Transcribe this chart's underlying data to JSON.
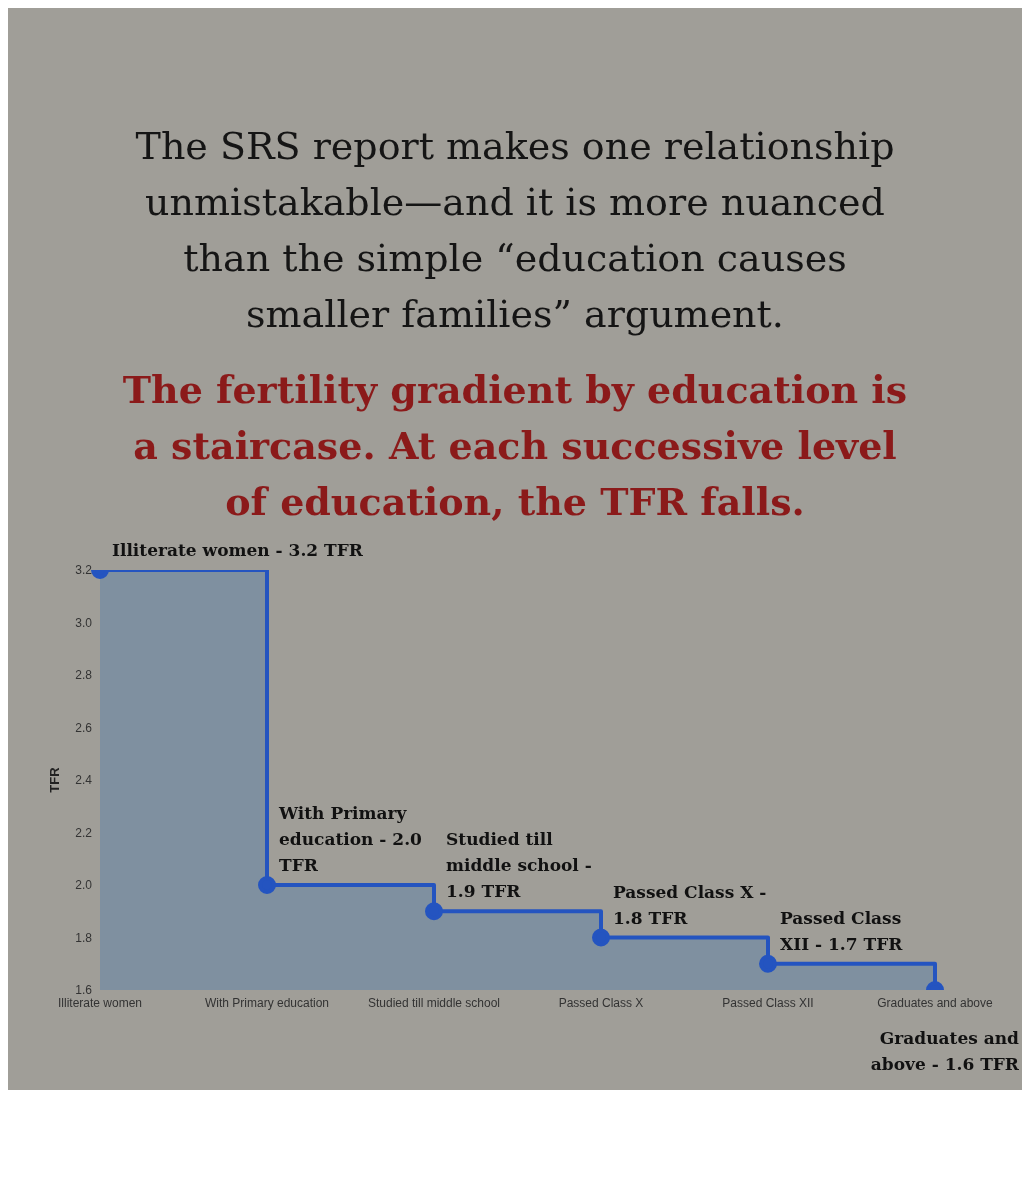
{
  "chart_data": {
    "type": "step",
    "title": "The SRS report makes one relationship unmistakable—and it is more nuanced than the simple “education causes smaller families” argument.",
    "subtitle": "The fertility gradient by education is a staircase. At each successive level of education, the TFR falls.",
    "ylabel": "TFR",
    "categories": [
      "Illiterate women",
      "With Primary education",
      "Studied till middle school",
      "Passed Class X",
      "Passed Class XII",
      "Graduates and above"
    ],
    "series": [
      {
        "color": "#2454c0",
        "values": [
          3.2,
          2.0,
          1.9,
          1.8,
          1.7,
          1.6
        ]
      }
    ],
    "ylim": [
      1.6,
      3.2
    ],
    "yticks": [
      1.6,
      1.8,
      {
        "value": 2,
        "label": "2.0"
      },
      2.2,
      2.4,
      2.6,
      2.8,
      {
        "value": 3,
        "label": "3.0"
      },
      3.2
    ],
    "grid": false,
    "legend": false,
    "marker": "circle",
    "line_style": "solid",
    "annotations": [
      {
        "text": "Illiterate women - 3.2 TFR",
        "x": "Illiterate women",
        "y": 3.2
      },
      {
        "text": "With Primary education - 2.0 TFR",
        "x": "With Primary education",
        "y": 2.0
      },
      {
        "text": "Studied till middle school - 1.9 TFR",
        "x": "Studied till middle school",
        "y": 1.9
      },
      {
        "text": "Passed Class X - 1.8 TFR",
        "x": "Passed Class X",
        "y": 1.8
      },
      {
        "text": "Passed Class XII - 1.7 TFR",
        "x": "Passed Class XII",
        "y": 1.7
      },
      {
        "text": "Graduates and above - 1.6 TFR",
        "x": "Graduates and above",
        "y": 1.6
      }
    ]
  }
}
